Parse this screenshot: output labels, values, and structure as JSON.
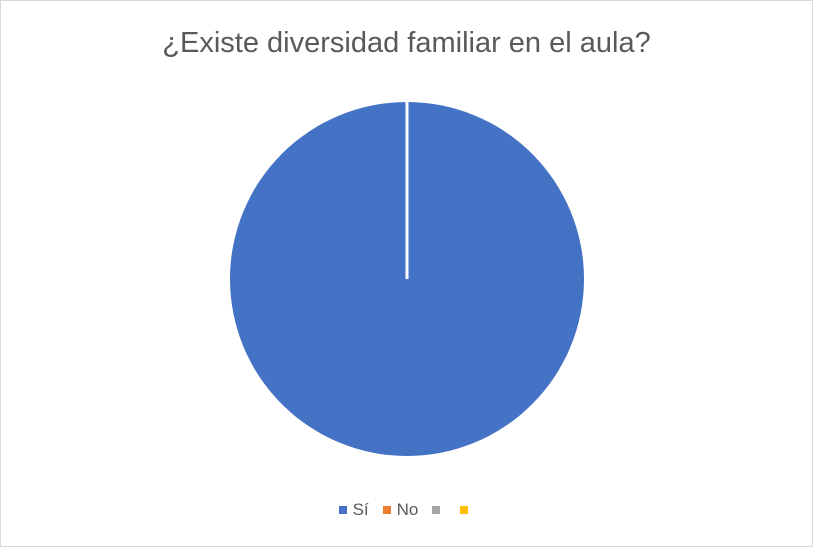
{
  "chart_data": {
    "type": "pie",
    "title": "¿Existe diversidad familiar en el aula?",
    "categories": [
      "Sí",
      "No",
      "",
      ""
    ],
    "values": [
      100,
      0,
      0,
      0
    ],
    "colors": [
      "#4472C4",
      "#ED7D31",
      "#A5A5A5",
      "#FFC000"
    ],
    "legend_position": "bottom"
  }
}
